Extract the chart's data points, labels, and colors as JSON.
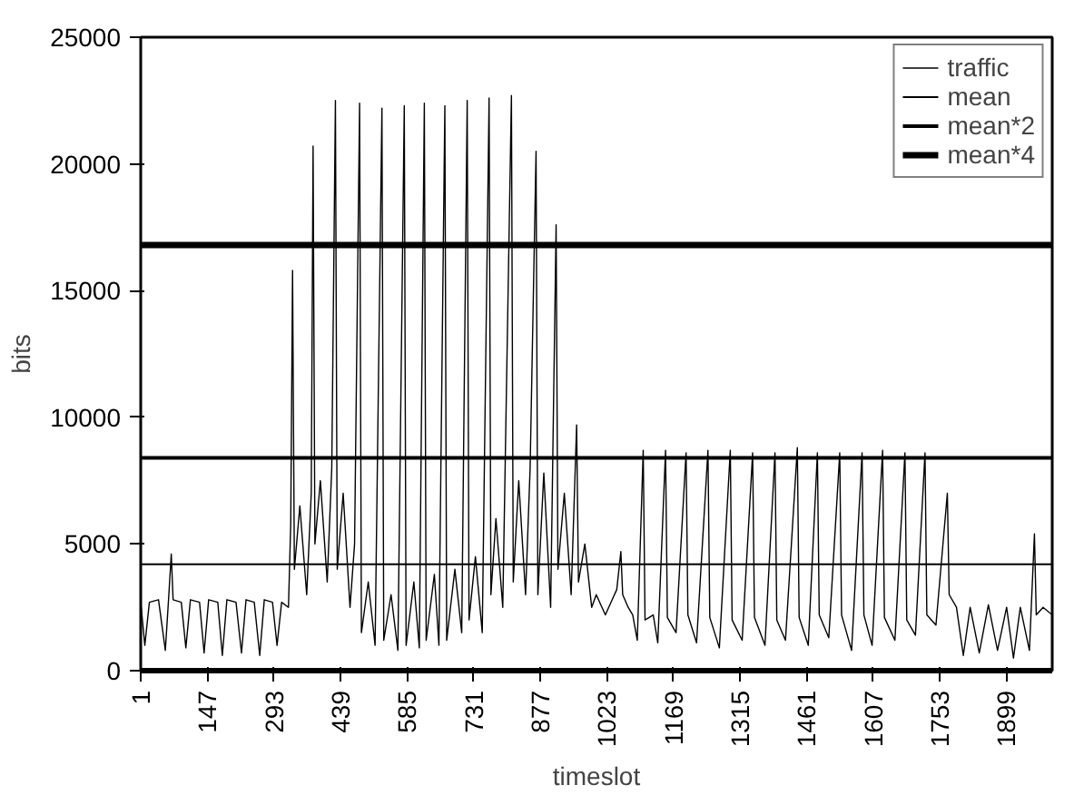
{
  "chart_data": {
    "type": "line",
    "xlabel": "timeslot",
    "ylabel": "bits",
    "xlim": [
      1,
      2000
    ],
    "xticks": [
      1,
      147,
      293,
      439,
      585,
      731,
      877,
      1023,
      1169,
      1315,
      1461,
      1607,
      1753,
      1899
    ],
    "ylim": [
      0,
      25000
    ],
    "yticks": [
      0,
      5000,
      10000,
      15000,
      20000,
      25000
    ],
    "grid": false,
    "legend": "top right",
    "marker": "none",
    "line_style": "solid",
    "series": [
      {
        "name": "traffic",
        "color": "#000000",
        "x": [
          1,
          10,
          20,
          40,
          55,
          62,
          68,
          72,
          90,
          100,
          110,
          130,
          140,
          150,
          170,
          180,
          190,
          210,
          222,
          232,
          250,
          262,
          272,
          290,
          300,
          310,
          325,
          330,
          334,
          338,
          350,
          365,
          375,
          379,
          383,
          395,
          410,
          420,
          428,
          432,
          445,
          460,
          470,
          481,
          485,
          500,
          515,
          530,
          534,
          550,
          565,
          579,
          583,
          600,
          612,
          623,
          627,
          645,
          655,
          668,
          672,
          690,
          705,
          717,
          721,
          735,
          750,
          765,
          769,
          780,
          795,
          814,
          818,
          830,
          845,
          855,
          868,
          872,
          885,
          900,
          912,
          916,
          930,
          945,
          957,
          961,
          975,
          990,
          1000,
          1020,
          1035,
          1045,
          1054,
          1058,
          1070,
          1080,
          1090,
          1103,
          1107,
          1125,
          1135,
          1152,
          1156,
          1175,
          1197,
          1201,
          1220,
          1245,
          1249,
          1270,
          1294,
          1298,
          1320,
          1343,
          1347,
          1370,
          1392,
          1396,
          1415,
          1441,
          1445,
          1465,
          1485,
          1489,
          1510,
          1534,
          1538,
          1560,
          1583,
          1587,
          1605,
          1628,
          1632,
          1655,
          1677,
          1681,
          1700,
          1721,
          1725,
          1745,
          1770,
          1774,
          1790,
          1805,
          1820,
          1840,
          1860,
          1880,
          1900,
          1915,
          1930,
          1950,
          1961,
          1965,
          1980,
          2000
        ],
        "values": [
          2700,
          1000,
          2700,
          2800,
          800,
          2800,
          4600,
          2800,
          2700,
          900,
          2800,
          2700,
          700,
          2800,
          2700,
          600,
          2800,
          2700,
          700,
          2800,
          2700,
          600,
          2800,
          2700,
          1000,
          2700,
          2500,
          5800,
          15800,
          4000,
          6500,
          3000,
          7000,
          20700,
          5000,
          7500,
          3500,
          8000,
          22500,
          4000,
          7000,
          2500,
          5000,
          22400,
          1500,
          3500,
          1000,
          22200,
          1200,
          3000,
          800,
          22300,
          1000,
          3500,
          900,
          22400,
          1200,
          3800,
          1000,
          22300,
          1200,
          4000,
          1500,
          22500,
          2000,
          4500,
          1500,
          22600,
          3000,
          6000,
          2500,
          22700,
          3500,
          7500,
          3000,
          8000,
          20500,
          3000,
          7800,
          2500,
          17600,
          4000,
          7000,
          3000,
          9700,
          3500,
          5000,
          2500,
          3000,
          2200,
          2800,
          3200,
          4700,
          3000,
          2500,
          2200,
          1200,
          8700,
          2000,
          2200,
          1100,
          8700,
          2100,
          1500,
          8600,
          2200,
          1100,
          8700,
          2100,
          900,
          8700,
          2000,
          1200,
          8600,
          2100,
          1000,
          8600,
          2000,
          1200,
          8800,
          2100,
          1000,
          8600,
          2200,
          1300,
          8600,
          2200,
          800,
          8600,
          2200,
          1000,
          8700,
          2100,
          1200,
          8600,
          2000,
          1400,
          8600,
          2200,
          1800,
          7000,
          3000,
          2500,
          600,
          2500,
          700,
          2600,
          800,
          2500,
          500,
          2500,
          800,
          5400,
          2200,
          2500,
          2200
        ]
      },
      {
        "name": "mean",
        "color": "#000000",
        "x": [
          1,
          2000
        ],
        "values": [
          4200,
          4200
        ]
      },
      {
        "name": "mean*2",
        "color": "#000000",
        "x": [
          1,
          2000
        ],
        "values": [
          8400,
          8400
        ]
      },
      {
        "name": "mean*4",
        "color": "#000000",
        "x": [
          1,
          2000
        ],
        "values": [
          16800,
          16800
        ]
      }
    ]
  }
}
